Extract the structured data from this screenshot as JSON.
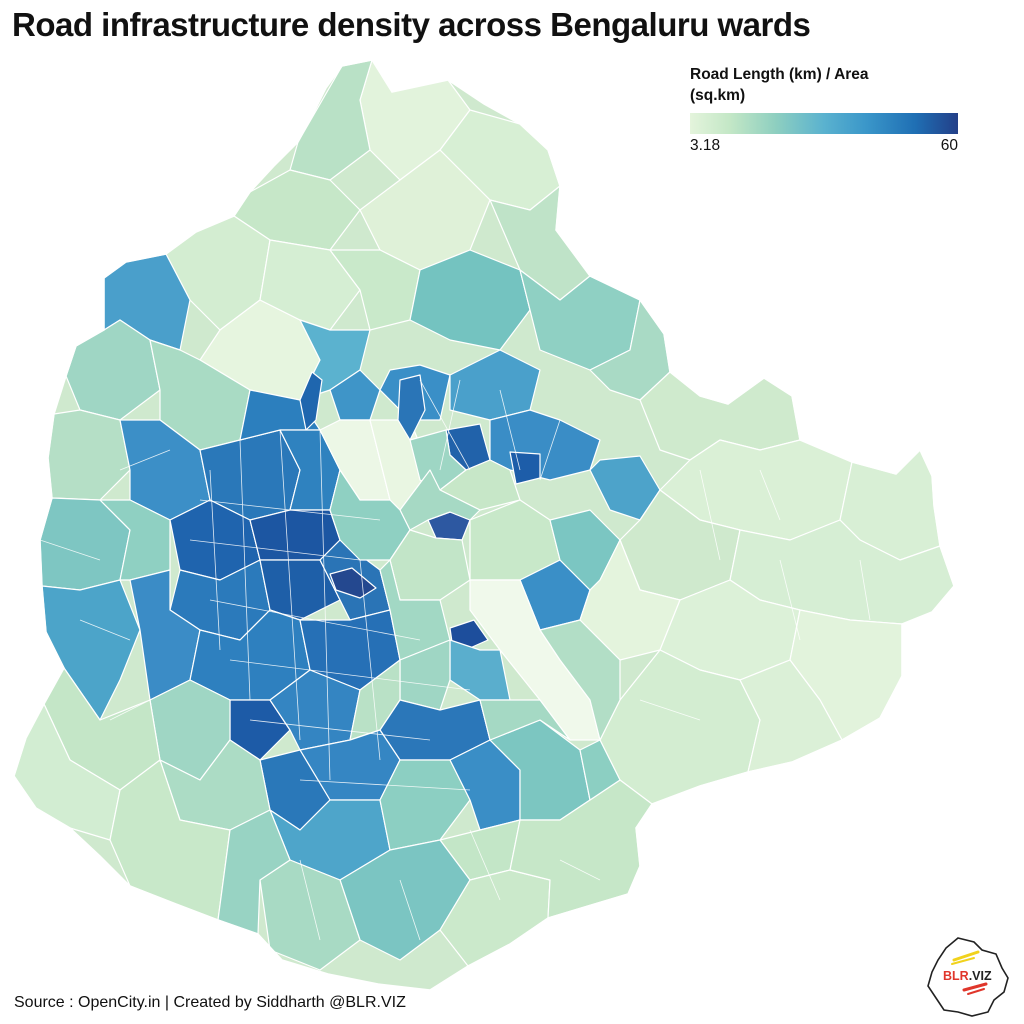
{
  "title": "Road infrastructure density across Bengaluru wards",
  "legend": {
    "title": "Road Length (km) / Area (sq.km)",
    "min_label": "3.18",
    "max_label": "60",
    "scale_colors": [
      "#e4f4dc",
      "#c3e7c6",
      "#8ecfc0",
      "#5ab2cf",
      "#3a96c9",
      "#1f6fb4",
      "#233f88"
    ]
  },
  "source": "Source : OpenCity.in | Created by Siddharth @BLR.VIZ",
  "logo": {
    "text_red": "BLR",
    "text_dark": ".VIZ"
  },
  "map": {
    "city": "Bengaluru",
    "region_type": "wards",
    "boundary_color": "#ffffff"
  }
}
